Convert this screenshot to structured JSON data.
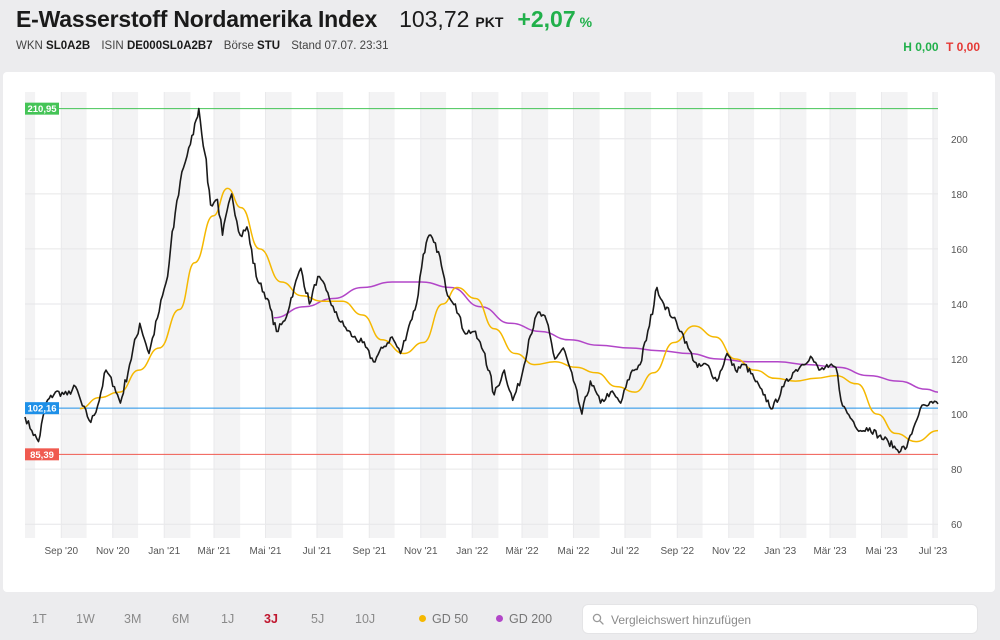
{
  "header": {
    "title": "E-Wasserstoff Nordamerika Index",
    "price": "103,72",
    "unit": "PKT",
    "change": "+2,07",
    "change_unit": "%",
    "wkn_label": "WKN",
    "wkn": "SL0A2B",
    "isin_label": "ISIN",
    "isin": "DE000SL0A2B7",
    "exchange_label": "Börse",
    "exchange": "STU",
    "stand_label": "Stand",
    "stand": "07.07. 23:31",
    "high_label": "H",
    "high": "0,00",
    "low_label": "T",
    "low": "0,00"
  },
  "colors": {
    "up": "#21b04b",
    "down": "#e53935",
    "price_line": "#1a1a1a",
    "gd50": "#f5b800",
    "gd200": "#b246c8",
    "ref_high": "#45c457",
    "ref_current": "#1e90e8",
    "ref_low": "#f05a50",
    "active_range": "#c0172f"
  },
  "ranges": [
    "1T",
    "1W",
    "3M",
    "6M",
    "1J",
    "3J",
    "5J",
    "10J"
  ],
  "active_range": "3J",
  "legend": [
    {
      "label": "GD 50",
      "color": "#f5b800"
    },
    {
      "label": "GD 200",
      "color": "#b246c8"
    }
  ],
  "search": {
    "placeholder": "Vergleichswert hinzufügen"
  },
  "icons": {
    "search": "search-icon"
  },
  "chart_data": {
    "type": "line",
    "x_start": "2020-07-20",
    "x_end": "2023-07-07",
    "ylim": [
      55,
      217
    ],
    "y_ticks": [
      60,
      80,
      100,
      120,
      140,
      160,
      180,
      200
    ],
    "x_tick_labels": [
      "Sep '20",
      "Nov '20",
      "Jan '21",
      "Mär '21",
      "Mai '21",
      "Jul '21",
      "Sep '21",
      "Nov '21",
      "Jan '22",
      "Mär '22",
      "Mai '22",
      "Jul '22",
      "Sep '22",
      "Nov '22",
      "Jan '23",
      "Mär '23",
      "Mai '23",
      "Jul '23"
    ],
    "x_tick_dates": [
      "2020-09-01",
      "2020-11-01",
      "2021-01-01",
      "2021-03-01",
      "2021-05-01",
      "2021-07-01",
      "2021-09-01",
      "2021-11-01",
      "2022-01-01",
      "2022-03-01",
      "2022-05-01",
      "2022-07-01",
      "2022-09-01",
      "2022-11-01",
      "2023-01-01",
      "2023-03-01",
      "2023-05-01",
      "2023-07-01"
    ],
    "reference_lines": [
      {
        "label": "210,95",
        "value": 210.95,
        "color": "#45c457"
      },
      {
        "label": "102,16",
        "value": 102.16,
        "color": "#1e90e8"
      },
      {
        "label": "85,39",
        "value": 85.39,
        "color": "#f05a50"
      }
    ],
    "grid": true,
    "series": [
      {
        "name": "Kurs",
        "color": "#1a1a1a",
        "points": [
          [
            "2020-07-20",
            99
          ],
          [
            "2020-07-28",
            94
          ],
          [
            "2020-08-05",
            90
          ],
          [
            "2020-08-14",
            104
          ],
          [
            "2020-08-25",
            108
          ],
          [
            "2020-09-08",
            107
          ],
          [
            "2020-09-18",
            110
          ],
          [
            "2020-09-26",
            103
          ],
          [
            "2020-10-06",
            97
          ],
          [
            "2020-10-14",
            103
          ],
          [
            "2020-10-24",
            116
          ],
          [
            "2020-11-03",
            110
          ],
          [
            "2020-11-10",
            104
          ],
          [
            "2020-11-21",
            118
          ],
          [
            "2020-12-03",
            133
          ],
          [
            "2020-12-14",
            122
          ],
          [
            "2020-12-24",
            135
          ],
          [
            "2021-01-05",
            150
          ],
          [
            "2021-01-14",
            173
          ],
          [
            "2021-01-22",
            188
          ],
          [
            "2021-02-01",
            198
          ],
          [
            "2021-02-08",
            207
          ],
          [
            "2021-02-11",
            211
          ],
          [
            "2021-02-18",
            195
          ],
          [
            "2021-02-25",
            176
          ],
          [
            "2021-03-05",
            178
          ],
          [
            "2021-03-11",
            165
          ],
          [
            "2021-03-22",
            180
          ],
          [
            "2021-04-01",
            165
          ],
          [
            "2021-04-09",
            168
          ],
          [
            "2021-04-20",
            150
          ],
          [
            "2021-05-03",
            142
          ],
          [
            "2021-05-14",
            130
          ],
          [
            "2021-05-24",
            134
          ],
          [
            "2021-06-04",
            146
          ],
          [
            "2021-06-12",
            153
          ],
          [
            "2021-06-22",
            140
          ],
          [
            "2021-07-02",
            150
          ],
          [
            "2021-07-12",
            145
          ],
          [
            "2021-07-22",
            137
          ],
          [
            "2021-08-02",
            132
          ],
          [
            "2021-08-13",
            128
          ],
          [
            "2021-08-24",
            126
          ],
          [
            "2021-09-06",
            119
          ],
          [
            "2021-09-17",
            124
          ],
          [
            "2021-09-28",
            128
          ],
          [
            "2021-10-08",
            122
          ],
          [
            "2021-10-18",
            132
          ],
          [
            "2021-10-27",
            140
          ],
          [
            "2021-11-04",
            158
          ],
          [
            "2021-11-11",
            165
          ],
          [
            "2021-11-22",
            159
          ],
          [
            "2021-12-01",
            145
          ],
          [
            "2021-12-12",
            140
          ],
          [
            "2021-12-22",
            130
          ],
          [
            "2022-01-03",
            130
          ],
          [
            "2022-01-16",
            122
          ],
          [
            "2022-01-27",
            107
          ],
          [
            "2022-02-08",
            116
          ],
          [
            "2022-02-18",
            105
          ],
          [
            "2022-02-28",
            113
          ],
          [
            "2022-03-09",
            127
          ],
          [
            "2022-03-20",
            137
          ],
          [
            "2022-03-30",
            134
          ],
          [
            "2022-04-09",
            120
          ],
          [
            "2022-04-19",
            124
          ],
          [
            "2022-05-01",
            112
          ],
          [
            "2022-05-11",
            100
          ],
          [
            "2022-05-21",
            112
          ],
          [
            "2022-06-02",
            104
          ],
          [
            "2022-06-14",
            108
          ],
          [
            "2022-06-26",
            104
          ],
          [
            "2022-07-08",
            115
          ],
          [
            "2022-07-19",
            118
          ],
          [
            "2022-07-30",
            132
          ],
          [
            "2022-08-08",
            146
          ],
          [
            "2022-08-16",
            140
          ],
          [
            "2022-08-27",
            135
          ],
          [
            "2022-09-06",
            130
          ],
          [
            "2022-09-14",
            124
          ],
          [
            "2022-09-25",
            117
          ],
          [
            "2022-10-06",
            118
          ],
          [
            "2022-10-18",
            112
          ],
          [
            "2022-10-30",
            122
          ],
          [
            "2022-11-09",
            116
          ],
          [
            "2022-11-20",
            118
          ],
          [
            "2022-12-01",
            113
          ],
          [
            "2022-12-12",
            107
          ],
          [
            "2022-12-23",
            102
          ],
          [
            "2023-01-05",
            110
          ],
          [
            "2023-01-16",
            115
          ],
          [
            "2023-01-27",
            118
          ],
          [
            "2023-02-06",
            121
          ],
          [
            "2023-02-16",
            116
          ],
          [
            "2023-02-27",
            117
          ],
          [
            "2023-03-08",
            117
          ],
          [
            "2023-03-16",
            103
          ],
          [
            "2023-03-27",
            98
          ],
          [
            "2023-04-06",
            94
          ],
          [
            "2023-04-17",
            95
          ],
          [
            "2023-04-28",
            92
          ],
          [
            "2023-05-09",
            90
          ],
          [
            "2023-05-20",
            87
          ],
          [
            "2023-05-31",
            88
          ],
          [
            "2023-06-08",
            95
          ],
          [
            "2023-06-16",
            102
          ],
          [
            "2023-06-24",
            103
          ],
          [
            "2023-07-01",
            104
          ],
          [
            "2023-07-07",
            103.72
          ]
        ]
      },
      {
        "name": "GD 50",
        "color": "#f5b800",
        "points": [
          [
            "2020-09-23",
            102
          ],
          [
            "2020-10-16",
            106
          ],
          [
            "2020-11-09",
            108
          ],
          [
            "2020-12-02",
            116
          ],
          [
            "2020-12-26",
            124
          ],
          [
            "2021-01-19",
            138
          ],
          [
            "2021-02-06",
            155
          ],
          [
            "2021-02-28",
            172
          ],
          [
            "2021-03-17",
            182
          ],
          [
            "2021-04-02",
            175
          ],
          [
            "2021-04-24",
            160
          ],
          [
            "2021-05-20",
            148
          ],
          [
            "2021-06-13",
            143
          ],
          [
            "2021-07-07",
            141
          ],
          [
            "2021-07-31",
            141
          ],
          [
            "2021-08-24",
            136
          ],
          [
            "2021-09-16",
            127
          ],
          [
            "2021-10-12",
            122
          ],
          [
            "2021-11-04",
            126
          ],
          [
            "2021-11-27",
            140
          ],
          [
            "2021-12-14",
            146
          ],
          [
            "2022-01-05",
            142
          ],
          [
            "2022-01-27",
            131
          ],
          [
            "2022-02-21",
            122
          ],
          [
            "2022-03-16",
            118
          ],
          [
            "2022-04-09",
            119
          ],
          [
            "2022-05-04",
            117
          ],
          [
            "2022-05-28",
            115
          ],
          [
            "2022-06-21",
            110
          ],
          [
            "2022-07-13",
            108
          ],
          [
            "2022-08-04",
            115
          ],
          [
            "2022-08-28",
            126
          ],
          [
            "2022-09-21",
            132
          ],
          [
            "2022-10-16",
            128
          ],
          [
            "2022-11-09",
            120
          ],
          [
            "2022-12-02",
            116
          ],
          [
            "2022-12-26",
            113
          ],
          [
            "2023-01-19",
            112
          ],
          [
            "2023-02-12",
            113
          ],
          [
            "2023-03-08",
            114
          ],
          [
            "2023-04-02",
            111
          ],
          [
            "2023-04-26",
            100
          ],
          [
            "2023-05-18",
            93
          ],
          [
            "2023-06-11",
            90
          ],
          [
            "2023-07-07",
            94
          ]
        ]
      },
      {
        "name": "GD 200",
        "color": "#b246c8",
        "points": [
          [
            "2021-05-11",
            135
          ],
          [
            "2021-06-16",
            139
          ],
          [
            "2021-07-20",
            142
          ],
          [
            "2021-08-24",
            146
          ],
          [
            "2021-09-28",
            148
          ],
          [
            "2021-11-02",
            148
          ],
          [
            "2021-12-07",
            146
          ],
          [
            "2022-01-11",
            139
          ],
          [
            "2022-02-15",
            133
          ],
          [
            "2022-03-23",
            130
          ],
          [
            "2022-04-26",
            127
          ],
          [
            "2022-05-31",
            125
          ],
          [
            "2022-07-07",
            124
          ],
          [
            "2022-08-11",
            123
          ],
          [
            "2022-09-15",
            122
          ],
          [
            "2022-10-20",
            120
          ],
          [
            "2022-11-24",
            119
          ],
          [
            "2022-12-29",
            119
          ],
          [
            "2023-02-03",
            118
          ],
          [
            "2023-03-10",
            117
          ],
          [
            "2023-04-16",
            114
          ],
          [
            "2023-05-21",
            112
          ],
          [
            "2023-06-24",
            109
          ],
          [
            "2023-07-07",
            108
          ]
        ]
      }
    ]
  }
}
